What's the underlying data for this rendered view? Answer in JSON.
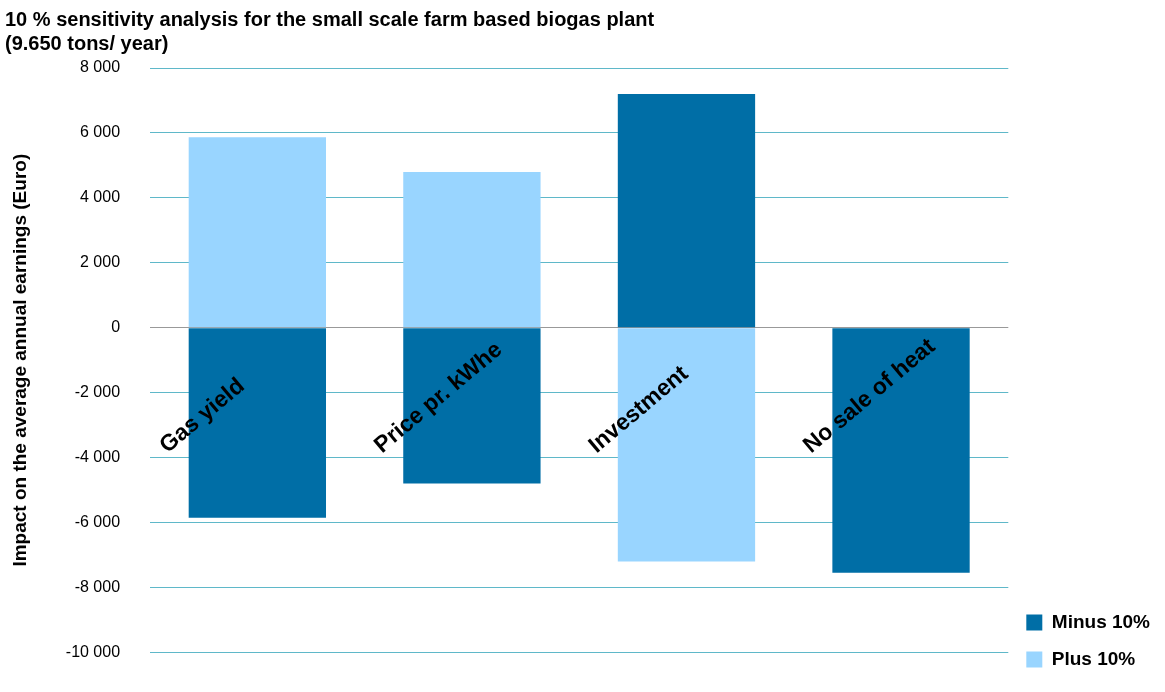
{
  "chart_data": {
    "type": "bar",
    "title": "10 % sensitivity analysis for the small scale farm based biogas plant\n(9.650 tons/ year)",
    "ylabel": "Impact on the average annual earnings (Euro)",
    "categories": [
      "Gas yield",
      "Price pr. kWhe",
      "Investment",
      "No sale of heat"
    ],
    "stacked": true,
    "series": [
      {
        "name": "Minus 10%",
        "color": "#006ea6",
        "values": [
          -5850,
          -4800,
          7200,
          -7550
        ]
      },
      {
        "name": "Plus 10%",
        "color": "#99d5ff",
        "values": [
          5870,
          4800,
          -7200,
          null
        ]
      }
    ],
    "ylim": [
      -10000,
      8000
    ],
    "yticks": [
      {
        "value": -10000,
        "label": "-10 000"
      },
      {
        "value": -8000,
        "label": "-8 000"
      },
      {
        "value": -6000,
        "label": "-6 000"
      },
      {
        "value": -4000,
        "label": "-4 000"
      },
      {
        "value": -2000,
        "label": "-2 000"
      },
      0,
      {
        "value": 2000,
        "label": "2 000"
      },
      {
        "value": 4000,
        "label": "4 000"
      },
      {
        "value": 6000,
        "label": "6 000"
      },
      {
        "value": 8000,
        "label": "8 000"
      }
    ],
    "grid": "y",
    "legend": "bottom right"
  }
}
